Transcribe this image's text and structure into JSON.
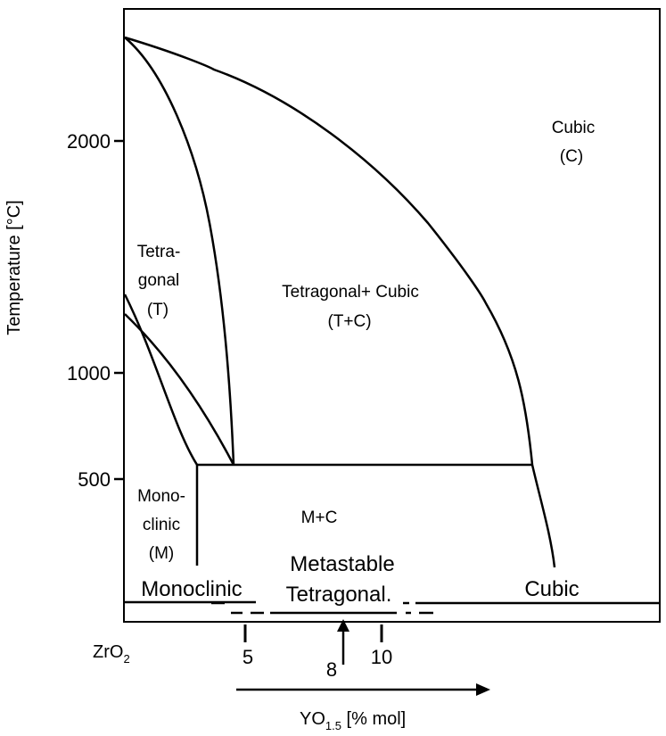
{
  "y_axis": {
    "title": "Temperature [°C]",
    "ticks": [
      "2000",
      "1000",
      "500"
    ]
  },
  "x_axis": {
    "origin_label": "ZrO",
    "origin_subscript": "2",
    "ticks": [
      "5",
      "8",
      "10"
    ],
    "title": "YO",
    "title_subscript": "1.5",
    "title_suffix": " [% mol]"
  },
  "regions": {
    "cubic": [
      "Cubic",
      "(C)"
    ],
    "tetragonal": [
      "Tetra-",
      "gonal",
      "(T)"
    ],
    "tetragonal_cubic": [
      "Tetragonal+ Cubic",
      "(T+C)"
    ],
    "monoclinic": [
      "Mono-",
      "clinic",
      "(M)"
    ],
    "m_c": "M+C"
  },
  "bottom_band": {
    "monoclinic": "Monoclinic",
    "metastable": [
      "Metastable",
      "Tetragonal."
    ],
    "cubic": "Cubic"
  }
}
